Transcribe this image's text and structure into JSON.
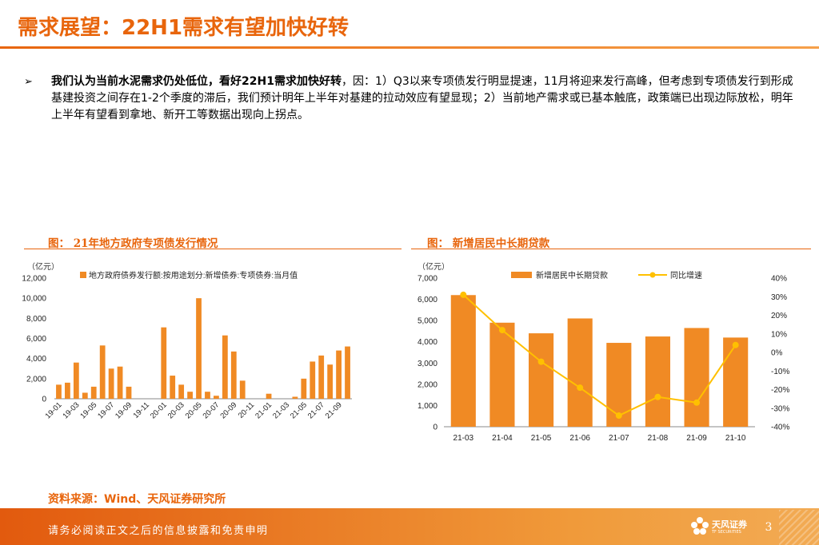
{
  "page": {
    "title": "需求展望：22H1需求有望加快好转",
    "bullet": {
      "arrow": "➢",
      "bold": "我们认为当前水泥需求仍处低位，看好22H1需求加快好转",
      "rest": "，因：1）Q3以来专项债发行明显提速，11月将迎来发行高峰，但考虑到专项债发行到形成基建投资之间存在1-2个季度的滞后，我们预计明年上半年对基建的拉动效应有望显现；2）当前地产需求或已基本触底，政策端已出现边际放松，明年上半年有望看到拿地、新开工等数据出现向上拐点。"
    },
    "source": "资料来源：Wind、天风证券研究所",
    "footer": "请务必阅读正文之后的信息披露和免责申明",
    "logo_text": "天风证券",
    "logo_sub": "TF SECURITIES",
    "page_number": "3"
  },
  "charts": {
    "left": {
      "caption": "图：  21年地方政府专项债发行情况"
    },
    "right": {
      "caption": "图：  新增居民中长期贷款"
    }
  },
  "colors": {
    "accent": "#e8650c",
    "bar": "#f08a24",
    "line": "#ffc000"
  },
  "chart_data": [
    {
      "type": "bar",
      "title": "21年地方政府专项债发行情况",
      "unit_label": "（亿元）",
      "legend": "地方政府债券发行额:按用途划分:新增债券:专项债券:当月值",
      "ylim": [
        0,
        12000
      ],
      "yticks": [
        "0",
        "2,000",
        "4,000",
        "6,000",
        "8,000",
        "10,000",
        "12,000"
      ],
      "categories": [
        "19-01",
        "19-02",
        "19-03",
        "19-04",
        "19-05",
        "19-06",
        "19-07",
        "19-08",
        "19-09",
        "19-10",
        "19-11",
        "19-12",
        "20-01",
        "20-02",
        "20-03",
        "20-04",
        "20-05",
        "20-06",
        "20-07",
        "20-08",
        "20-09",
        "20-10",
        "20-11",
        "20-12",
        "21-01",
        "21-02",
        "21-03",
        "21-04",
        "21-05",
        "21-06",
        "21-07",
        "21-08",
        "21-09",
        "21-10"
      ],
      "xticks": [
        "19-01",
        "19-03",
        "19-05",
        "19-07",
        "19-09",
        "19-11",
        "20-01",
        "20-03",
        "20-05",
        "20-07",
        "20-09",
        "20-11",
        "21-01",
        "21-03",
        "21-05",
        "21-07",
        "21-09"
      ],
      "values": [
        1400,
        1600,
        3600,
        600,
        1200,
        5300,
        3000,
        3200,
        1200,
        0,
        0,
        0,
        7100,
        2300,
        1400,
        700,
        10000,
        700,
        300,
        6300,
        4700,
        1800,
        0,
        0,
        500,
        0,
        0,
        200,
        2000,
        3700,
        4300,
        3400,
        4800,
        5200
      ]
    },
    {
      "type": "bar+line",
      "title": "新增居民中长期贷款",
      "unit_label": "（亿元）",
      "categories": [
        "21-03",
        "21-04",
        "21-05",
        "21-06",
        "21-07",
        "21-08",
        "21-09",
        "21-10"
      ],
      "yticks_left": [
        "0",
        "1,000",
        "2,000",
        "3,000",
        "4,000",
        "5,000",
        "6,000",
        "7,000"
      ],
      "yticks_right": [
        "-40%",
        "-30%",
        "-20%",
        "-10%",
        "0%",
        "10%",
        "20%",
        "30%",
        "40%"
      ],
      "ylim_left": [
        0,
        7000
      ],
      "ylim_right": [
        -40,
        40
      ],
      "series": [
        {
          "name": "新增居民中长期贷款",
          "kind": "bar",
          "axis": "left",
          "values": [
            6200,
            4900,
            4400,
            5100,
            3950,
            4250,
            4650,
            4200
          ]
        },
        {
          "name": "同比增速",
          "kind": "line",
          "axis": "right",
          "values": [
            31,
            12,
            -5,
            -19,
            -34,
            -24,
            -27,
            4
          ]
        }
      ]
    }
  ]
}
